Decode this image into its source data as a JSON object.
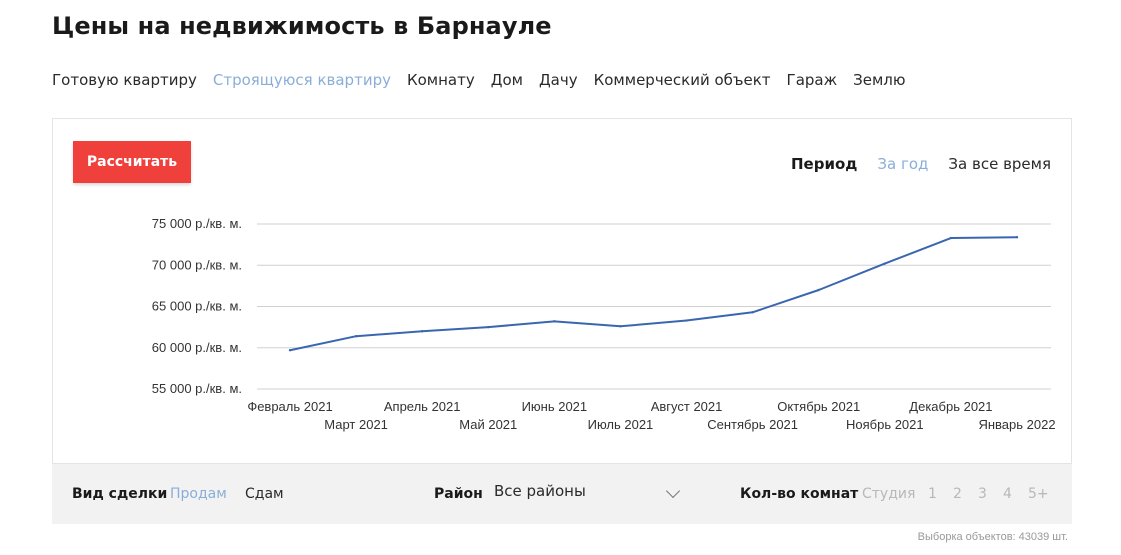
{
  "page": {
    "title": "Цены на недвижимость в Барнауле"
  },
  "property_types": [
    {
      "label": "Готовую квартиру",
      "active": false
    },
    {
      "label": "Строящуюся квартиру",
      "active": true
    },
    {
      "label": "Комнату",
      "active": false
    },
    {
      "label": "Дом",
      "active": false
    },
    {
      "label": "Дачу",
      "active": false
    },
    {
      "label": "Коммерческий объект",
      "active": false
    },
    {
      "label": "Гараж",
      "active": false
    },
    {
      "label": "Землю",
      "active": false
    }
  ],
  "calc_button": {
    "label": "Рассчитать"
  },
  "period": {
    "label": "Период",
    "options": [
      "За год",
      "За все время"
    ],
    "selected": "За год"
  },
  "colors": {
    "accent": "#f0403c",
    "active_link": "#8aaed8",
    "line": "#3a66b0",
    "grid": "#d0d0d0"
  },
  "chart_data": {
    "type": "line",
    "title": "",
    "xlabel": "",
    "ylabel": "",
    "ylim": [
      55000,
      75000
    ],
    "y_ticks": [
      {
        "value": 75000,
        "label": "75 000 р./кв. м."
      },
      {
        "value": 70000,
        "label": "70 000 р./кв. м."
      },
      {
        "value": 65000,
        "label": "65 000 р./кв. м."
      },
      {
        "value": 60000,
        "label": "60 000 р./кв. м."
      },
      {
        "value": 55000,
        "label": "55 000 р./кв. м."
      }
    ],
    "grid": true,
    "legend": "none",
    "categories": [
      "Февраль 2021",
      "Март 2021",
      "Апрель 2021",
      "Май 2021",
      "Июнь 2021",
      "Июль 2021",
      "Август 2021",
      "Сентябрь 2021",
      "Октябрь 2021",
      "Ноябрь 2021",
      "Декабрь 2021",
      "Январь 2022"
    ],
    "series": [
      {
        "values": [
          59700,
          61400,
          62000,
          62500,
          63200,
          62600,
          63300,
          64300,
          67000,
          70200,
          73300,
          73400
        ]
      }
    ]
  },
  "filters": {
    "deal_type": {
      "label": "Вид сделки",
      "options": [
        "Продам",
        "Сдам"
      ],
      "selected": "Продам"
    },
    "district": {
      "label": "Район",
      "value": "Все районы"
    },
    "rooms": {
      "label": "Кол-во комнат",
      "options": [
        "Студия",
        "1",
        "2",
        "3",
        "4",
        "5+"
      ]
    }
  },
  "sample_count": "Выборка объектов: 43039 шт."
}
